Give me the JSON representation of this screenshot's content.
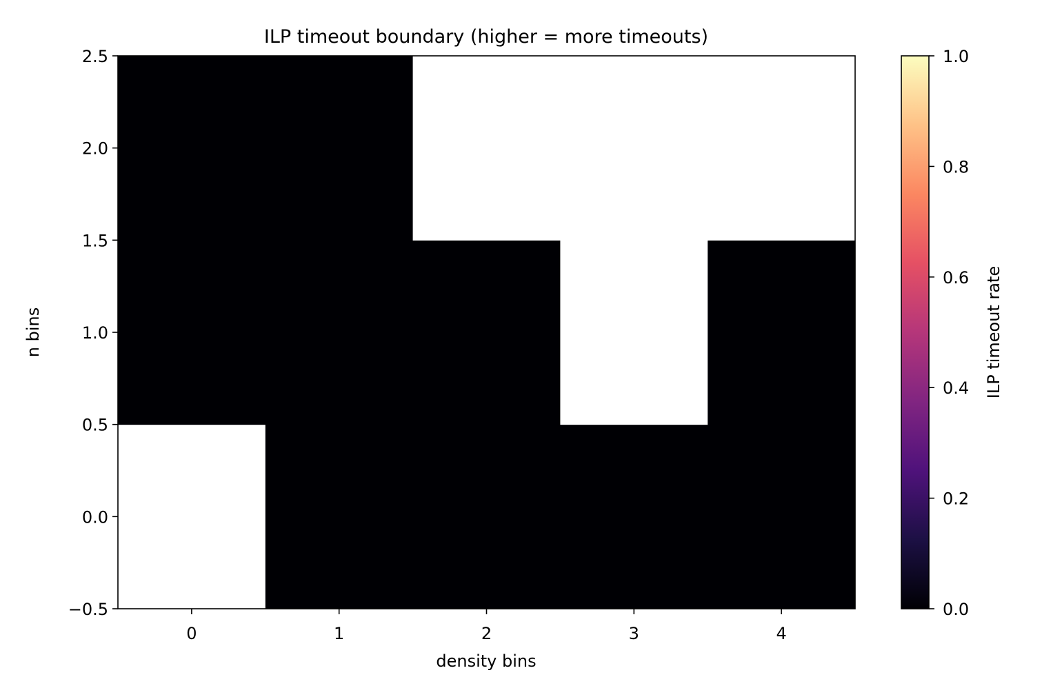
{
  "chart_data": {
    "type": "heatmap",
    "title": "ILP timeout boundary (higher = more timeouts)",
    "xlabel": "density bins",
    "ylabel": "n bins",
    "x_categories": [
      0,
      1,
      2,
      3,
      4
    ],
    "y_categories": [
      0,
      1,
      2
    ],
    "xlim": [
      -0.5,
      4.5
    ],
    "ylim": [
      -0.5,
      2.5
    ],
    "x_ticks": [
      "0",
      "1",
      "2",
      "3",
      "4"
    ],
    "y_ticks": [
      "−0.5",
      "0.0",
      "0.5",
      "1.0",
      "1.5",
      "2.0",
      "2.5"
    ],
    "values": [
      [
        null,
        0,
        0,
        0,
        0
      ],
      [
        0,
        0,
        0,
        null,
        0
      ],
      [
        0,
        0,
        null,
        null,
        null
      ]
    ],
    "missing_color": "#ffffff",
    "colormap": "magma",
    "colorbar": {
      "label": "ILP timeout rate",
      "range": [
        0.0,
        1.0
      ],
      "ticks": [
        "0.0",
        "0.2",
        "0.4",
        "0.6",
        "0.8",
        "1.0"
      ]
    },
    "grid": false
  }
}
